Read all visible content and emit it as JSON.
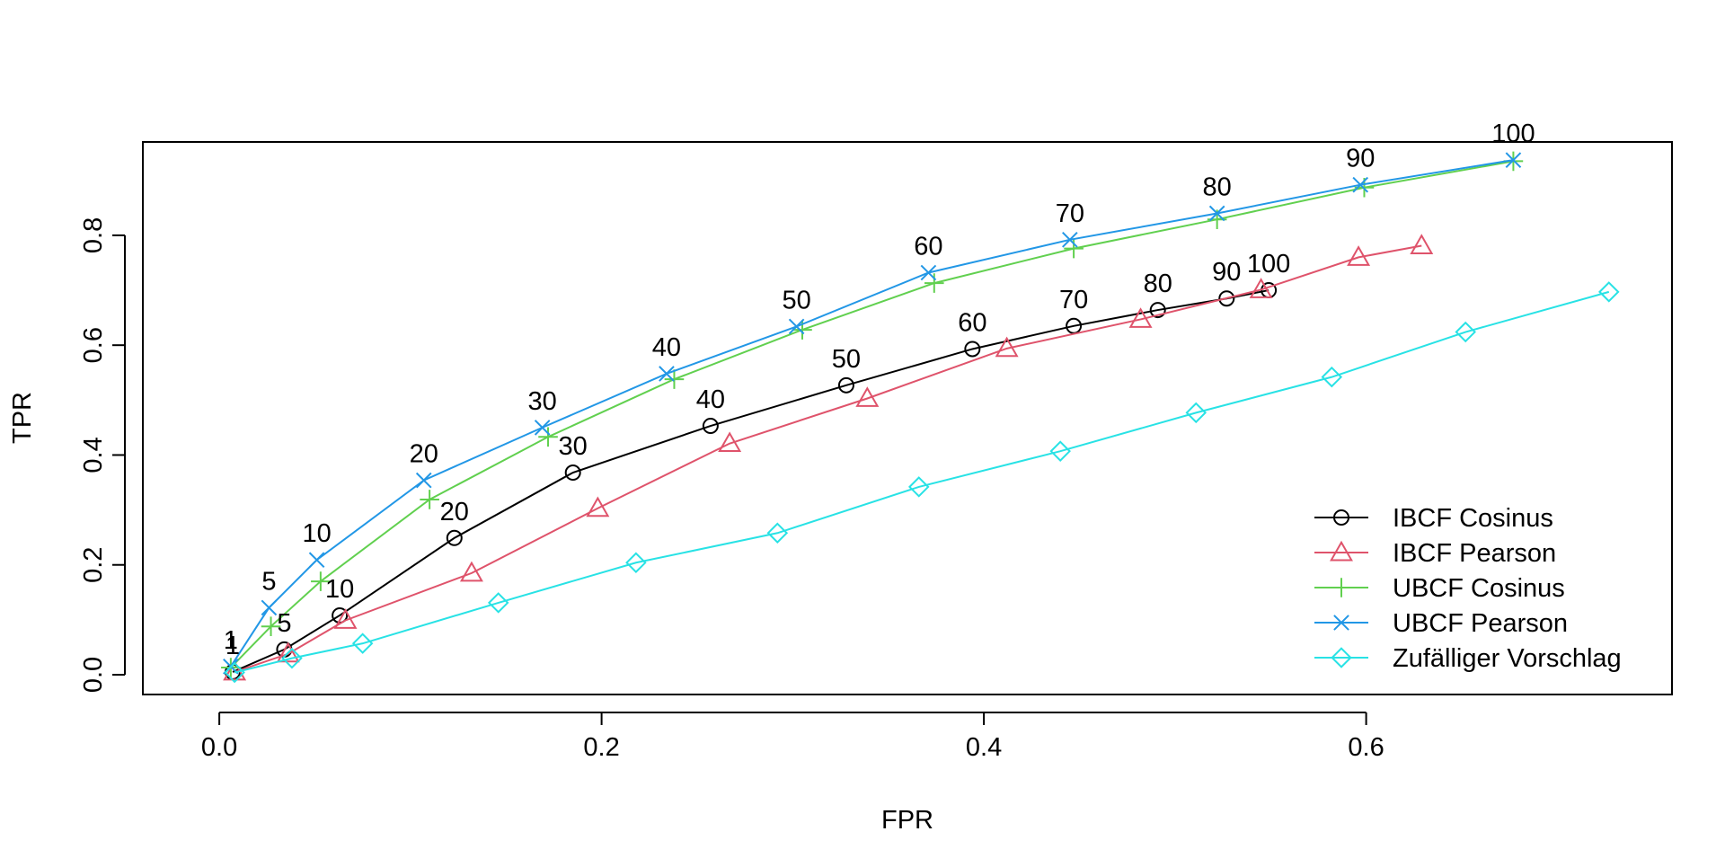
{
  "chart_data": {
    "type": "line",
    "title": "",
    "xlabel": "FPR",
    "ylabel": "TPR",
    "xlim": [
      -0.04,
      0.76
    ],
    "ylim": [
      -0.036,
      0.97
    ],
    "xticks": [
      "0.0",
      "0.2",
      "0.4",
      "0.6"
    ],
    "yticks": [
      "0.0",
      "0.2",
      "0.4",
      "0.6",
      "0.8"
    ],
    "grid": false,
    "legend_position": "bottom-right",
    "series": [
      {
        "name": "IBCF Cosinus",
        "color": "#000000",
        "marker": "circle",
        "points": [
          {
            "x": 0.007,
            "y": 0.005,
            "label": "1"
          },
          {
            "x": 0.034,
            "y": 0.046,
            "label": "5"
          },
          {
            "x": 0.063,
            "y": 0.108,
            "label": "10"
          },
          {
            "x": 0.123,
            "y": 0.249,
            "label": "20"
          },
          {
            "x": 0.185,
            "y": 0.368,
            "label": "30"
          },
          {
            "x": 0.257,
            "y": 0.453,
            "label": "40"
          },
          {
            "x": 0.328,
            "y": 0.527,
            "label": "50"
          },
          {
            "x": 0.394,
            "y": 0.593,
            "label": "60"
          },
          {
            "x": 0.447,
            "y": 0.635,
            "label": "70"
          },
          {
            "x": 0.491,
            "y": 0.664,
            "label": "80"
          },
          {
            "x": 0.527,
            "y": 0.685,
            "label": "90"
          },
          {
            "x": 0.549,
            "y": 0.7,
            "label": "100"
          }
        ]
      },
      {
        "name": "IBCF Pearson",
        "color": "#DF536B",
        "marker": "triangle",
        "points": [
          {
            "x": 0.008,
            "y": 0.005
          },
          {
            "x": 0.036,
            "y": 0.038
          },
          {
            "x": 0.066,
            "y": 0.099
          },
          {
            "x": 0.132,
            "y": 0.185
          },
          {
            "x": 0.198,
            "y": 0.303
          },
          {
            "x": 0.267,
            "y": 0.421
          },
          {
            "x": 0.339,
            "y": 0.503
          },
          {
            "x": 0.412,
            "y": 0.594
          },
          {
            "x": 0.482,
            "y": 0.647
          },
          {
            "x": 0.545,
            "y": 0.701
          },
          {
            "x": 0.596,
            "y": 0.76
          },
          {
            "x": 0.629,
            "y": 0.781
          }
        ]
      },
      {
        "name": "UBCF Cosinus",
        "color": "#61D04F",
        "marker": "plus",
        "points": [
          {
            "x": 0.006,
            "y": 0.013
          },
          {
            "x": 0.027,
            "y": 0.088
          },
          {
            "x": 0.053,
            "y": 0.17
          },
          {
            "x": 0.11,
            "y": 0.319
          },
          {
            "x": 0.172,
            "y": 0.433
          },
          {
            "x": 0.238,
            "y": 0.538
          },
          {
            "x": 0.305,
            "y": 0.628
          },
          {
            "x": 0.374,
            "y": 0.713
          },
          {
            "x": 0.447,
            "y": 0.776
          },
          {
            "x": 0.522,
            "y": 0.829
          },
          {
            "x": 0.599,
            "y": 0.887
          },
          {
            "x": 0.677,
            "y": 0.935
          }
        ]
      },
      {
        "name": "UBCF Pearson",
        "color": "#2297E6",
        "marker": "x",
        "points": [
          {
            "x": 0.006,
            "y": 0.015,
            "label": "1"
          },
          {
            "x": 0.026,
            "y": 0.122,
            "label": "5"
          },
          {
            "x": 0.051,
            "y": 0.209,
            "label": "10"
          },
          {
            "x": 0.107,
            "y": 0.354,
            "label": "20"
          },
          {
            "x": 0.169,
            "y": 0.45,
            "label": "30"
          },
          {
            "x": 0.234,
            "y": 0.548,
            "label": "40"
          },
          {
            "x": 0.302,
            "y": 0.634,
            "label": "50"
          },
          {
            "x": 0.371,
            "y": 0.732,
            "label": "60"
          },
          {
            "x": 0.445,
            "y": 0.792,
            "label": "70"
          },
          {
            "x": 0.522,
            "y": 0.84,
            "label": "80"
          },
          {
            "x": 0.597,
            "y": 0.892,
            "label": "90"
          },
          {
            "x": 0.677,
            "y": 0.937,
            "label": "100"
          }
        ]
      },
      {
        "name": "Zufälliger Vorschlag",
        "color": "#28E2E5",
        "marker": "diamond",
        "points": [
          {
            "x": 0.008,
            "y": 0.004
          },
          {
            "x": 0.038,
            "y": 0.03
          },
          {
            "x": 0.075,
            "y": 0.057
          },
          {
            "x": 0.146,
            "y": 0.131
          },
          {
            "x": 0.218,
            "y": 0.204
          },
          {
            "x": 0.292,
            "y": 0.258
          },
          {
            "x": 0.366,
            "y": 0.342
          },
          {
            "x": 0.44,
            "y": 0.407
          },
          {
            "x": 0.511,
            "y": 0.477
          },
          {
            "x": 0.582,
            "y": 0.542
          },
          {
            "x": 0.652,
            "y": 0.624
          },
          {
            "x": 0.727,
            "y": 0.697
          }
        ]
      }
    ]
  }
}
